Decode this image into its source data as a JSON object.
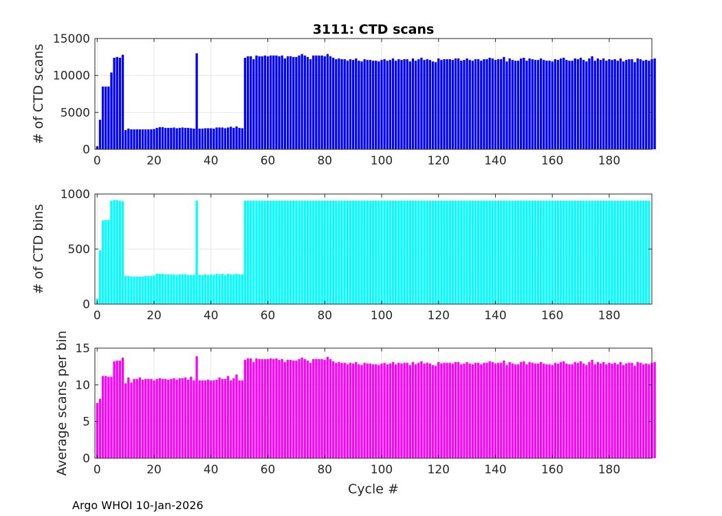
{
  "figure": {
    "footer": "Argo WHOI 10-Jan-2026",
    "x_label": "Cycle #"
  },
  "colors": {
    "scans": "#0000ff",
    "bins": "#00ffff",
    "avg": "#ff00ff",
    "grid": "#e6e6e6",
    "axis": "#262626"
  },
  "chart_data": [
    {
      "type": "bar",
      "title": "3111: CTD scans",
      "xlabel": "",
      "ylabel": "# of CTD scans",
      "xlim": [
        -0.8,
        195
      ],
      "ylim": [
        0,
        15000
      ],
      "xticks": [
        0,
        20,
        40,
        60,
        80,
        100,
        120,
        140,
        160,
        180
      ],
      "yticks": [
        0,
        5000,
        10000,
        15000
      ],
      "x_start": 0,
      "values": [
        400,
        4000,
        8500,
        8500,
        8500,
        10400,
        12400,
        12500,
        12400,
        12800,
        2600,
        2800,
        2700,
        2700,
        2700,
        2700,
        2700,
        2700,
        2700,
        2700,
        2750,
        2900,
        3000,
        3000,
        2900,
        2900,
        2900,
        2950,
        2850,
        2900,
        2950,
        2900,
        2900,
        2850,
        2800,
        13000,
        2800,
        2800,
        2850,
        2850,
        2850,
        2800,
        2950,
        2950,
        2950,
        2850,
        2950,
        3050,
        2900,
        3100,
        2900,
        2850,
        12400,
        12600,
        12600,
        12200,
        12700,
        12600,
        12600,
        12700,
        12600,
        12700,
        12700,
        12700,
        12600,
        12700,
        12300,
        12600,
        12600,
        12500,
        12500,
        12700,
        12900,
        12700,
        12500,
        12200,
        12700,
        12700,
        12700,
        12700,
        12600,
        12900,
        12600,
        12400,
        12200,
        12300,
        12200,
        12200,
        12000,
        12200,
        12100,
        12300,
        12000,
        11900,
        12200,
        12100,
        12100,
        12000,
        12000,
        11900,
        12100,
        12200,
        12000,
        12100,
        12300,
        12000,
        12200,
        12100,
        12200,
        12200,
        11900,
        12300,
        12000,
        12200,
        12400,
        12100,
        12200,
        12100,
        11900,
        11800,
        12300,
        12100,
        12200,
        12200,
        12200,
        12100,
        12300,
        12300,
        12000,
        12100,
        12300,
        12100,
        12000,
        12200,
        12200,
        12000,
        12200,
        12200,
        12400,
        12300,
        12100,
        12200,
        12200,
        12500,
        11900,
        12300,
        12100,
        12000,
        12000,
        12300,
        12400,
        12000,
        12300,
        12200,
        12100,
        12100,
        12300,
        12100,
        12000,
        12000,
        11900,
        12200,
        12100,
        12300,
        12400,
        12100,
        12000,
        12000,
        12300,
        12200,
        12400,
        12100,
        11900,
        12300,
        12600,
        12000,
        12300,
        12100,
        12300,
        12000,
        12200,
        12100,
        12200,
        12000,
        12300,
        11900,
        12100,
        12200,
        12200,
        11800,
        12300,
        12200,
        12000,
        12100,
        12000,
        12200,
        12300
      ],
      "color": "#0000ff"
    },
    {
      "type": "bar",
      "title": "",
      "xlabel": "",
      "ylabel": "# of CTD bins",
      "xlim": [
        -0.8,
        195
      ],
      "ylim": [
        0,
        1000
      ],
      "xticks": [
        0,
        20,
        40,
        60,
        80,
        100,
        120,
        140,
        160,
        180
      ],
      "yticks": [
        0,
        500,
        1000
      ],
      "x_start": 0,
      "values": [
        50,
        490,
        760,
        765,
        765,
        940,
        945,
        945,
        940,
        935,
        255,
        255,
        250,
        250,
        250,
        250,
        250,
        255,
        255,
        255,
        260,
        275,
        275,
        275,
        270,
        270,
        270,
        270,
        265,
        270,
        270,
        270,
        265,
        265,
        265,
        940,
        265,
        265,
        270,
        265,
        270,
        265,
        275,
        270,
        275,
        265,
        275,
        270,
        270,
        275,
        270,
        270,
        940,
        940,
        940,
        940,
        940,
        940,
        940,
        940,
        940,
        940,
        940,
        940,
        940,
        940,
        940,
        940,
        940,
        940,
        940,
        940,
        940,
        940,
        940,
        940,
        940,
        940,
        940,
        940,
        940,
        940,
        940,
        940,
        940,
        940,
        940,
        940,
        940,
        940,
        940,
        940,
        940,
        940,
        940,
        940,
        940,
        940,
        940,
        940,
        940,
        940,
        940,
        940,
        940,
        940,
        940,
        940,
        940,
        940,
        940,
        940,
        940,
        940,
        940,
        940,
        940,
        940,
        940,
        940,
        940,
        940,
        940,
        940,
        940,
        940,
        940,
        940,
        940,
        940,
        940,
        940,
        940,
        940,
        940,
        940,
        940,
        940,
        940,
        940,
        940,
        940,
        940,
        940,
        940,
        940,
        940,
        940,
        940,
        940,
        940,
        940,
        940,
        940,
        940,
        940,
        940,
        940,
        940,
        940,
        940,
        940,
        940,
        940,
        940,
        940,
        940,
        940,
        940,
        940,
        940,
        940,
        940,
        940,
        940,
        940,
        940,
        940,
        940,
        940,
        940,
        940,
        940,
        940,
        940,
        940,
        940,
        940,
        940,
        940,
        940,
        940,
        940,
        940,
        940
      ],
      "color": "#00ffff"
    },
    {
      "type": "bar",
      "title": "",
      "xlabel": "Cycle #",
      "ylabel": "Average scans per bin",
      "xlim": [
        -0.8,
        195
      ],
      "ylim": [
        0,
        15
      ],
      "xticks": [
        0,
        20,
        40,
        60,
        80,
        100,
        120,
        140,
        160,
        180
      ],
      "yticks": [
        0,
        5,
        10,
        15
      ],
      "x_start": 0,
      "values": [
        7.5,
        8.1,
        11.2,
        11.2,
        11.1,
        11.1,
        13.2,
        13.3,
        13.3,
        13.7,
        10.2,
        11.0,
        10.3,
        10.8,
        10.8,
        11.0,
        10.7,
        10.8,
        10.8,
        10.8,
        10.6,
        10.8,
        10.9,
        10.8,
        10.8,
        10.7,
        10.8,
        10.9,
        10.7,
        10.9,
        10.9,
        11.0,
        10.7,
        11.1,
        10.6,
        13.9,
        10.6,
        10.6,
        10.6,
        10.7,
        10.6,
        10.6,
        10.7,
        11.0,
        10.8,
        10.8,
        11.2,
        10.6,
        10.9,
        11.4,
        10.6,
        10.6,
        13.4,
        13.6,
        13.6,
        13.1,
        13.6,
        13.5,
        13.5,
        13.5,
        13.5,
        13.6,
        13.5,
        13.6,
        13.4,
        13.5,
        13.1,
        13.4,
        13.4,
        13.3,
        13.3,
        13.5,
        13.7,
        13.5,
        13.3,
        13.0,
        13.5,
        13.5,
        13.5,
        13.5,
        13.4,
        13.8,
        13.5,
        13.2,
        13.0,
        13.1,
        13.0,
        13.0,
        12.8,
        13.0,
        12.9,
        13.1,
        12.8,
        12.7,
        13.0,
        12.9,
        12.9,
        12.8,
        12.8,
        12.7,
        12.9,
        13.0,
        12.8,
        12.9,
        13.1,
        12.8,
        13.0,
        12.9,
        13.0,
        13.0,
        12.7,
        13.1,
        12.8,
        13.0,
        13.2,
        12.9,
        13.0,
        12.9,
        12.7,
        12.6,
        13.1,
        12.9,
        13.0,
        13.0,
        13.0,
        12.9,
        13.1,
        13.1,
        12.8,
        12.9,
        13.1,
        12.9,
        12.8,
        13.0,
        13.0,
        12.8,
        13.0,
        13.0,
        13.2,
        13.1,
        12.9,
        13.0,
        13.0,
        13.3,
        12.7,
        13.1,
        12.9,
        12.8,
        12.8,
        13.1,
        13.2,
        12.8,
        13.1,
        13.0,
        12.9,
        12.9,
        13.1,
        12.9,
        12.8,
        12.8,
        12.7,
        13.0,
        12.9,
        13.1,
        13.2,
        12.9,
        12.8,
        12.8,
        13.1,
        13.0,
        13.2,
        12.9,
        12.7,
        13.1,
        13.4,
        12.8,
        13.1,
        12.9,
        13.1,
        12.8,
        13.0,
        12.9,
        13.0,
        12.8,
        13.1,
        12.7,
        12.9,
        13.0,
        13.0,
        12.6,
        13.1,
        13.0,
        12.8,
        12.9,
        12.8,
        13.0,
        13.1
      ],
      "color": "#ff00ff"
    }
  ]
}
